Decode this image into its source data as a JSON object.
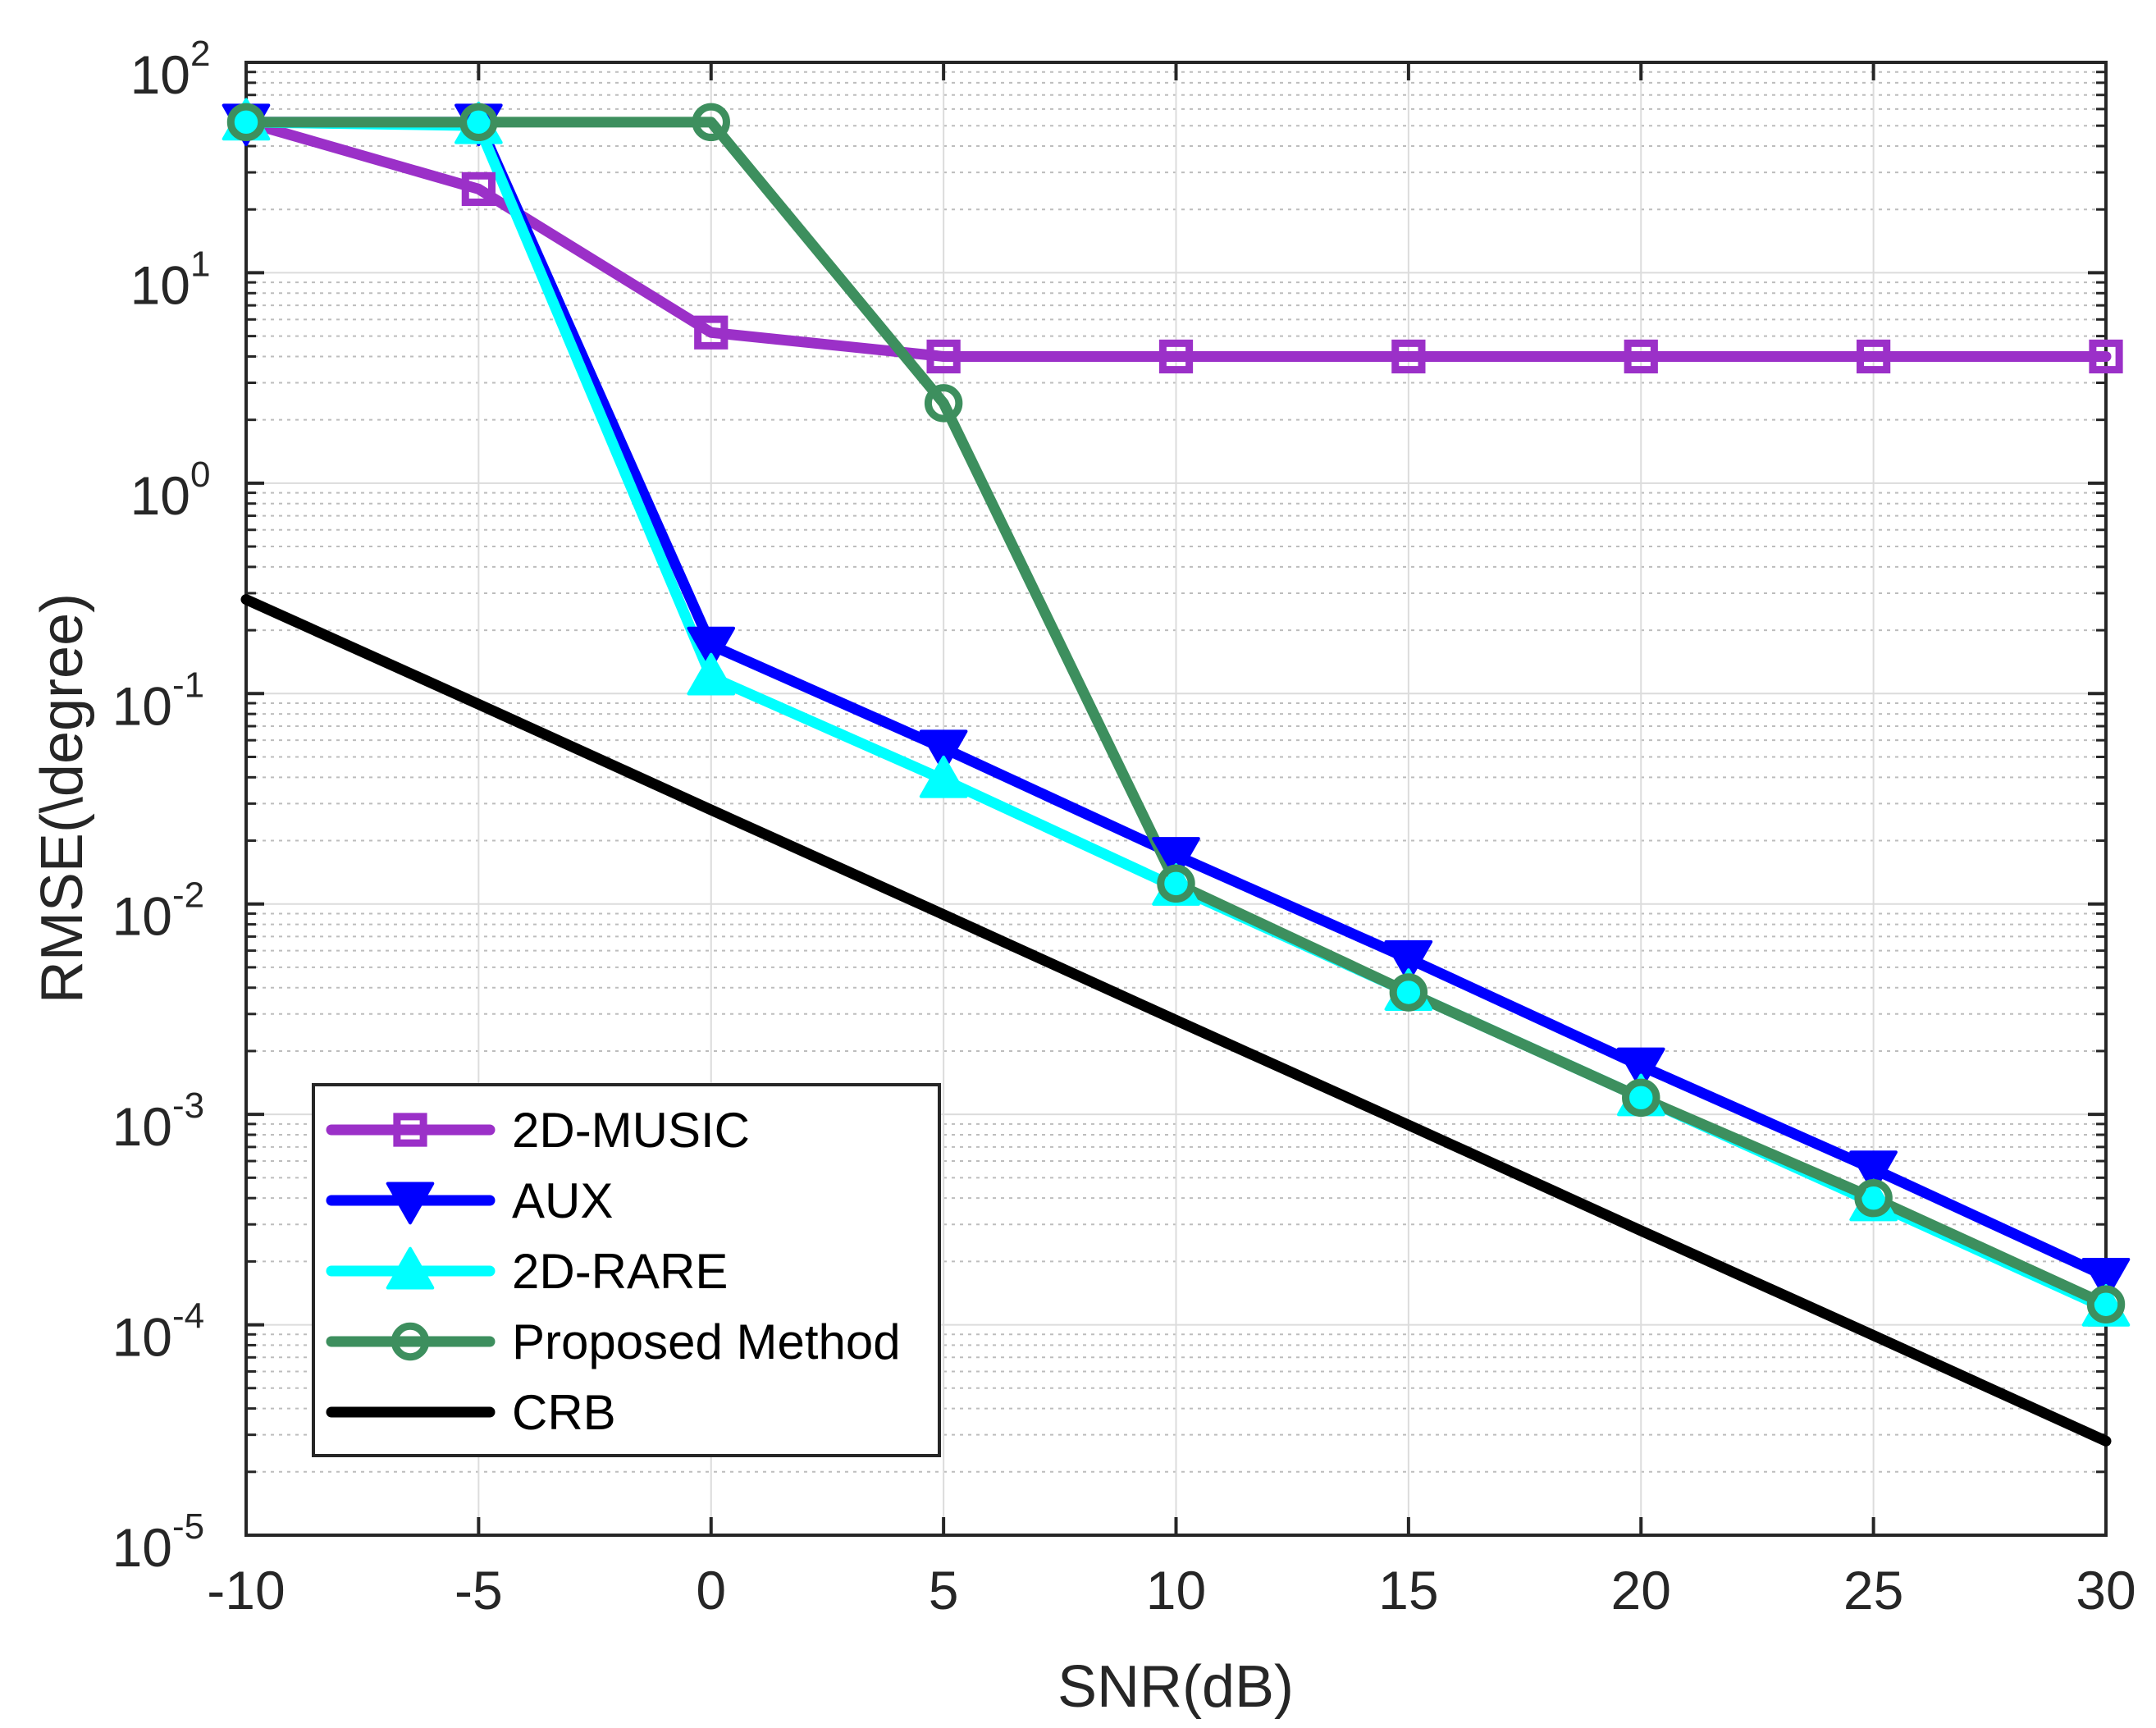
{
  "chart_data": {
    "type": "line",
    "title": "",
    "xlabel": "SNR(dB)",
    "ylabel": "RMSE(\\degree)",
    "x": [
      -10,
      -5,
      0,
      5,
      10,
      15,
      20,
      25,
      30
    ],
    "xlim": [
      -10,
      30
    ],
    "ylim": [
      1e-05,
      100
    ],
    "yscale": "log",
    "grid": true,
    "legend_position": "bottom-left",
    "x_tick_labels": [
      "-10",
      "-5",
      "0",
      "5",
      "10",
      "15",
      "20",
      "25",
      "30"
    ],
    "y_tick_labels": [
      {
        "base": "10",
        "exp": "-5",
        "value": 1e-05
      },
      {
        "base": "10",
        "exp": "-4",
        "value": 0.0001
      },
      {
        "base": "10",
        "exp": "-3",
        "value": 0.001
      },
      {
        "base": "10",
        "exp": "-2",
        "value": 0.01
      },
      {
        "base": "10",
        "exp": "-1",
        "value": 0.1
      },
      {
        "base": "10",
        "exp": "0",
        "value": 1
      },
      {
        "base": "10",
        "exp": "1",
        "value": 10
      },
      {
        "base": "10",
        "exp": "2",
        "value": 100
      }
    ],
    "series": [
      {
        "name": "2D-MUSIC",
        "color": "#9b30c8",
        "marker": "square",
        "values": [
          52,
          25,
          5.2,
          4.0,
          4.0,
          4.0,
          4.0,
          4.0,
          4.0
        ]
      },
      {
        "name": "AUX",
        "color": "#0000ff",
        "marker": "triangle-down",
        "values": [
          52,
          52,
          0.17,
          0.055,
          0.017,
          0.0055,
          0.0017,
          0.00055,
          0.00017
        ]
      },
      {
        "name": "2D-RARE",
        "color": "#00ffff",
        "marker": "triangle-up",
        "values": [
          52,
          50,
          0.12,
          0.039,
          0.012,
          0.0038,
          0.0012,
          0.00038,
          0.00012
        ]
      },
      {
        "name": "Proposed Method",
        "color": "#3d8f5e",
        "marker": "circle",
        "values": [
          52,
          52,
          52,
          2.4,
          0.0125,
          0.0038,
          0.0012,
          0.0004,
          0.000125
        ]
      },
      {
        "name": "CRB",
        "color": "#000000",
        "marker": "none",
        "values": [
          0.28,
          0.089,
          0.028,
          0.0089,
          0.0028,
          0.00089,
          0.00028,
          8.9e-05,
          2.8e-05
        ]
      }
    ]
  }
}
